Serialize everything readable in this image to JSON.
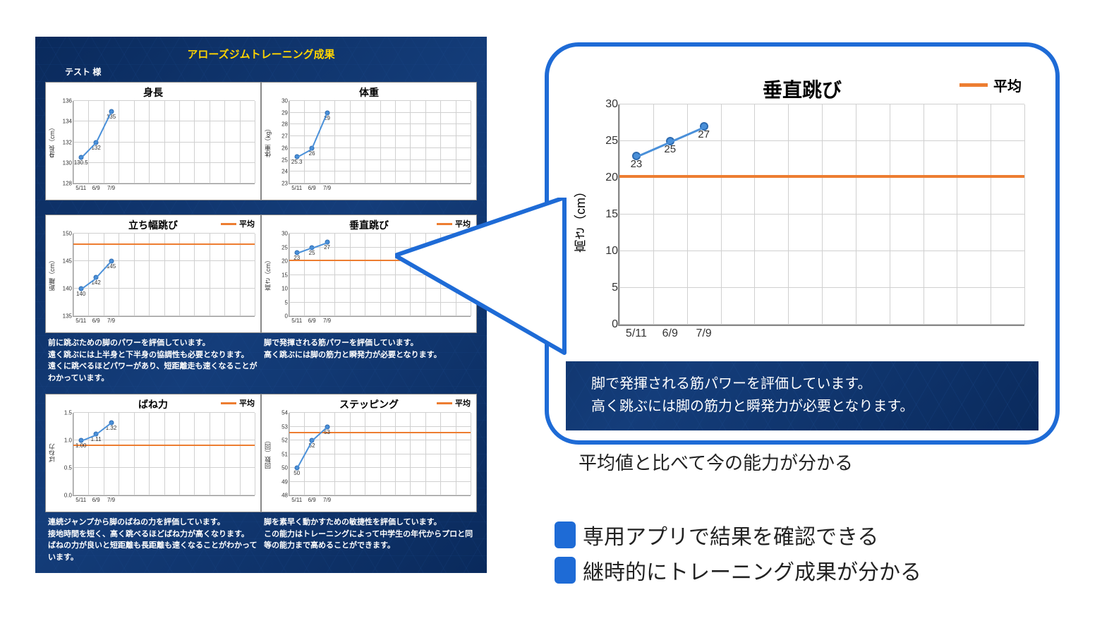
{
  "dashboard": {
    "title": "アローズジムトレーニング成果",
    "user": "テスト 様",
    "colors": {
      "series": "#4a90d9",
      "series_border": "#2e6bb0",
      "avg_line": "#ed7d31",
      "grid": "#d0d0d0",
      "bg_dark_a": "#0a2a5c",
      "bg_dark_b": "#143d7a",
      "title_color": "#ffd400",
      "accent_blue": "#1e6bd6"
    },
    "x_labels": [
      "5/11",
      "6/9",
      "7/9"
    ],
    "x_slots": 12,
    "avg_legend": "平均",
    "charts": [
      {
        "key": "height",
        "title": "身長",
        "ylabel": "身長（cm）",
        "ymin": 128,
        "ymax": 136,
        "ystep": 2,
        "values": [
          130.5,
          132,
          135
        ],
        "value_labels": [
          "130.5",
          "132",
          "135"
        ],
        "show_avg": false,
        "caption": ""
      },
      {
        "key": "weight",
        "title": "体重",
        "ylabel": "体重（kg）",
        "ymin": 23,
        "ymax": 30,
        "ystep": 1,
        "values": [
          25.3,
          26,
          29
        ],
        "value_labels": [
          "25.3",
          "26",
          "29"
        ],
        "show_avg": false,
        "caption": ""
      },
      {
        "key": "broadjump",
        "title": "立ち幅跳び",
        "ylabel": "距離（cm）",
        "ymin": 135,
        "ymax": 150,
        "ystep": 5,
        "values": [
          140,
          142,
          145
        ],
        "value_labels": [
          "140",
          "142",
          "145"
        ],
        "show_avg": true,
        "avg": 148,
        "caption": "前に跳ぶための脚のパワーを評価しています。\n遠く跳ぶには上半身と下半身の協調性も必要となります。\n遠くに跳べるほどパワーがあり、短距離走も速くなることがわかっています。"
      },
      {
        "key": "vjump",
        "title": "垂直跳び",
        "ylabel": "高さ（cm）",
        "ymin": 0,
        "ymax": 30,
        "ystep": 5,
        "values": [
          23,
          25,
          27
        ],
        "value_labels": [
          "23",
          "25",
          "27"
        ],
        "show_avg": true,
        "avg": 20,
        "caption": "脚で発揮される筋パワーを評価しています。\n高く跳ぶには脚の筋力と瞬発力が必要となります。"
      },
      {
        "key": "spring",
        "title": "ばね力",
        "ylabel": "ばね力",
        "ymin": 0.0,
        "ymax": 1.5,
        "ystep": 0.5,
        "values": [
          1.0,
          1.11,
          1.32
        ],
        "value_labels": [
          "1.00",
          "1.11",
          "1.32"
        ],
        "show_avg": true,
        "avg": 0.9,
        "caption": "連続ジャンプから脚のばねの力を評価しています。\n接地時間を短く、高く跳べるほどばね力が高くなります。\nばねの力が良いと短距離も長距離も速くなることがわかっています。"
      },
      {
        "key": "stepping",
        "title": "ステッピング",
        "ylabel": "回数（回）",
        "ymin": 48,
        "ymax": 54,
        "ystep": 1,
        "values": [
          50,
          52,
          53
        ],
        "value_labels": [
          "50",
          "52",
          "53"
        ],
        "show_avg": true,
        "avg": 52.5,
        "caption": "脚を素早く動かすための敏捷性を評価しています。\nこの能力はトレーニングによって中学生の年代からプロと同等の能力まで高めることができます。"
      }
    ]
  },
  "zoom": {
    "source_key": "vjump",
    "subtitle": "平均値と比べて今の能力が分かる"
  },
  "bullets": [
    "専用アプリで結果を確認できる",
    "継時的にトレーニング成果が分かる"
  ]
}
